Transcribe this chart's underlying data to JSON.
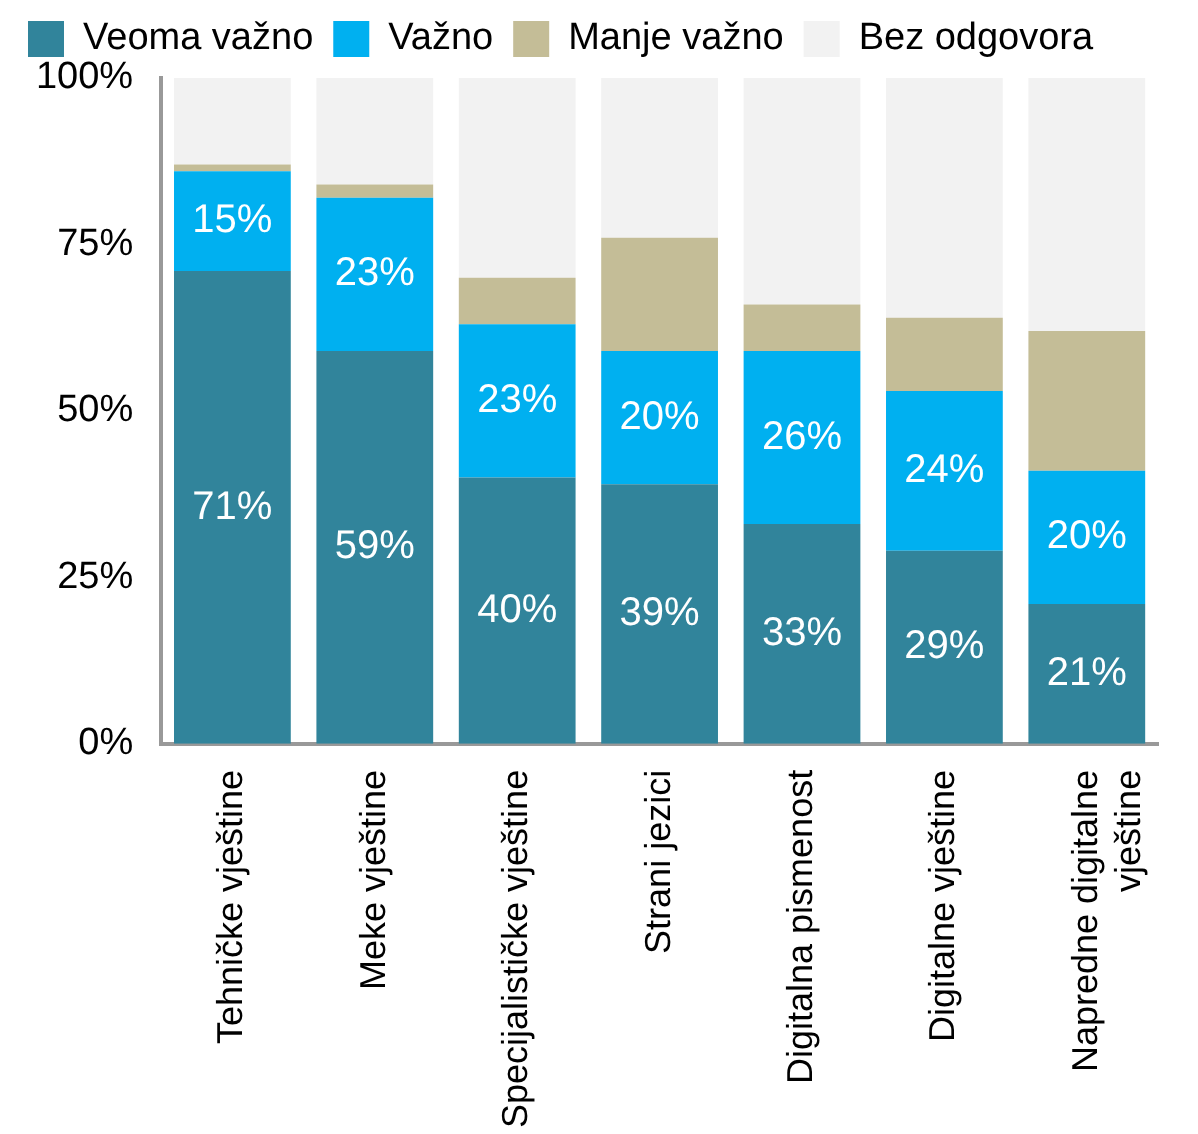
{
  "chart_data": {
    "type": "bar",
    "stacked": true,
    "categories": [
      "Tehničke vještine",
      "Meke vještine",
      "Specijalističke vještine",
      "Strani jezici",
      "Digitalna pismenost",
      "Digitalne vještine",
      "Napredne digitalne vještine"
    ],
    "series": [
      {
        "name": "Veoma važno",
        "color": "#31849b",
        "values": [
          71,
          59,
          40,
          39,
          33,
          29,
          21
        ],
        "value_labels": [
          "71%",
          "59%",
          "40%",
          "39%",
          "33%",
          "29%",
          "21%"
        ]
      },
      {
        "name": "Važno",
        "color": "#00b0f0",
        "values": [
          15,
          23,
          23,
          20,
          26,
          24,
          20
        ],
        "value_labels": [
          "15%",
          "23%",
          "23%",
          "20%",
          "26%",
          "24%",
          "20%"
        ]
      },
      {
        "name": "Manje važno",
        "color": "#c4bd97",
        "values": [
          1,
          2,
          7,
          17,
          7,
          11,
          21
        ]
      },
      {
        "name": "Bez odgovora",
        "color": "#f2f2f2",
        "values": [
          13,
          16,
          30,
          24,
          34,
          36,
          38
        ]
      }
    ],
    "ylim": [
      0,
      100
    ],
    "yticks": [
      {
        "value": 0,
        "label": "0%"
      },
      {
        "value": 25,
        "label": "25%"
      },
      {
        "value": 50,
        "label": "50%"
      },
      {
        "value": 75,
        "label": "75%"
      },
      {
        "value": 100,
        "label": "100%"
      }
    ],
    "grid": false,
    "legend": "top"
  }
}
